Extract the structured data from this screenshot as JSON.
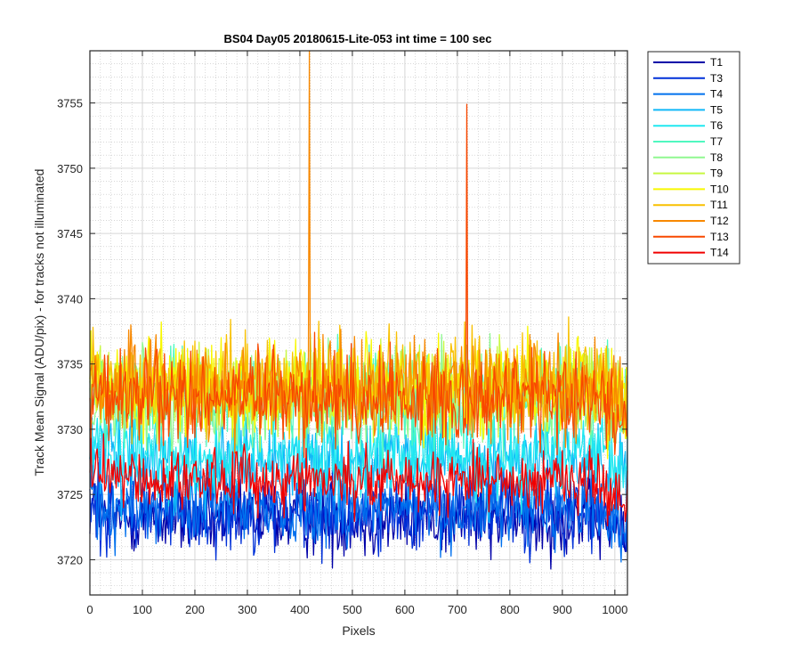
{
  "chart_data": {
    "type": "line",
    "title": "BS04 Day05 20180615-Lite-053 int time = 100 sec",
    "xlabel": "Pixels",
    "ylabel": "Track Mean Signal (ADU/pix) - for tracks not illuminated",
    "xlim": [
      0,
      1024
    ],
    "ylim": [
      3717.3,
      3759
    ],
    "xticks": [
      0,
      100,
      200,
      300,
      400,
      500,
      600,
      700,
      800,
      900,
      1000
    ],
    "yticks": [
      3720,
      3725,
      3730,
      3735,
      3740,
      3745,
      3750,
      3755
    ],
    "grid": "major and minor",
    "legend_position": "outside-right",
    "series": [
      {
        "name": "T1",
        "color": "#0000a8",
        "mean": 3723.2,
        "noise": 1.5
      },
      {
        "name": "T3",
        "color": "#0030d8",
        "mean": 3723.6,
        "noise": 1.5
      },
      {
        "name": "T4",
        "color": "#0070ee",
        "mean": 3724.1,
        "noise": 1.5
      },
      {
        "name": "T5",
        "color": "#10b8f8",
        "mean": 3727.5,
        "noise": 1.6
      },
      {
        "name": "T6",
        "color": "#20e8f0",
        "mean": 3728.0,
        "noise": 1.6
      },
      {
        "name": "T7",
        "color": "#50f8c0",
        "mean": 3732.3,
        "noise": 1.8
      },
      {
        "name": "T8",
        "color": "#90f890",
        "mean": 3732.6,
        "noise": 1.8
      },
      {
        "name": "T9",
        "color": "#c8f840",
        "mean": 3733.0,
        "noise": 1.8
      },
      {
        "name": "T10",
        "color": "#f8f800",
        "mean": 3733.3,
        "noise": 1.8
      },
      {
        "name": "T11",
        "color": "#f8c000",
        "mean": 3733.5,
        "noise": 1.8
      },
      {
        "name": "T12",
        "color": "#f88800",
        "mean": 3733.2,
        "noise": 1.8,
        "spike": {
          "x": 418,
          "y": 3759
        }
      },
      {
        "name": "T13",
        "color": "#f84800",
        "mean": 3732.4,
        "noise": 1.8,
        "spike": {
          "x": 718,
          "y": 3754.9
        }
      },
      {
        "name": "T14",
        "color": "#f00000",
        "mean": 3726.2,
        "noise": 1.2
      }
    ]
  }
}
